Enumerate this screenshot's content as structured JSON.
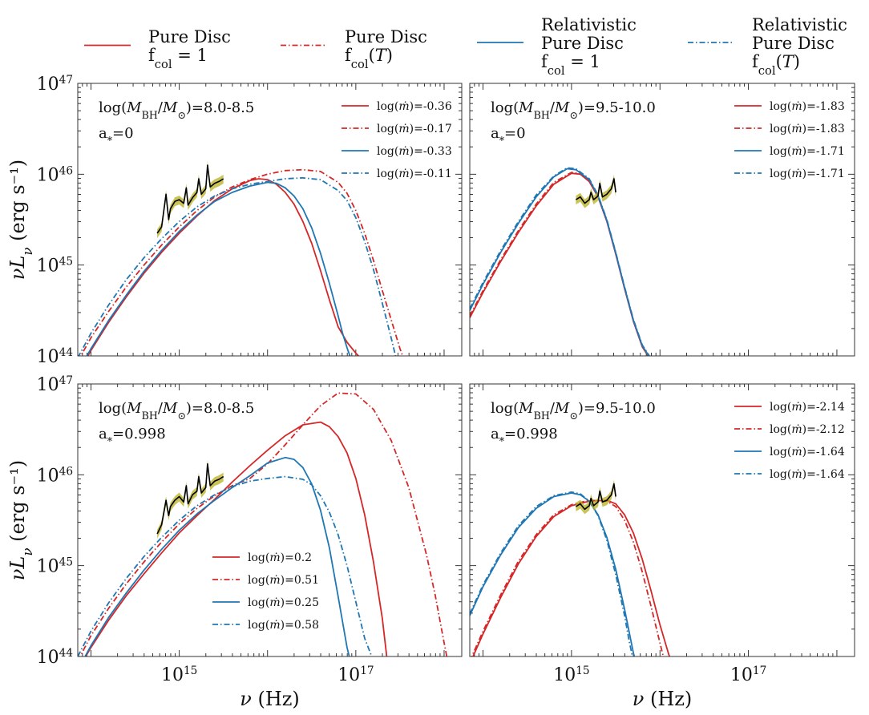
{
  "figure_legend": [
    {
      "lines": [
        "Pure Disc",
        "f_col = 1"
      ],
      "color": "#d62728",
      "dash": "solid"
    },
    {
      "lines": [
        "Pure Disc",
        "f_col(T)"
      ],
      "color": "#d62728",
      "dash": "dashdot"
    },
    {
      "lines": [
        "Relativistic",
        "Pure Disc",
        "f_col = 1"
      ],
      "color": "#1f77b4",
      "dash": "solid"
    },
    {
      "lines": [
        "Relativistic",
        "Pure Disc",
        "f_col(T)"
      ],
      "color": "#1f77b4",
      "dash": "dashdot"
    }
  ],
  "axes": {
    "xlabel": "ν (Hz)",
    "ylabel": "νLν (erg s⁻¹)",
    "x_tick_labels": [
      "10^15",
      "10^17"
    ],
    "y_tick_labels": [
      "10^44",
      "10^45",
      "10^46",
      "10^47"
    ]
  },
  "chart_data": [
    {
      "type": "line",
      "panel": "top-left",
      "annotation": [
        "log(M_BH/M_⊙)=8.0-8.5",
        "a_*=0"
      ],
      "legend_position": "top-right",
      "xlim": [
        13.85,
        18.2
      ],
      "ylim": [
        44,
        47
      ],
      "series": [
        {
          "name": "log(ṁ)=-0.36",
          "color": "#d62728",
          "dash": "solid",
          "x": [
            13.85,
            14.0,
            14.2,
            14.4,
            14.6,
            14.8,
            15.0,
            15.2,
            15.4,
            15.6,
            15.8,
            15.9,
            16.0,
            16.1,
            16.2,
            16.3,
            16.4,
            16.5,
            16.6,
            16.7,
            16.8,
            16.9,
            17.0,
            17.05
          ],
          "y": [
            43.8,
            44.06,
            44.37,
            44.65,
            44.91,
            45.14,
            45.35,
            45.54,
            45.71,
            45.84,
            45.93,
            45.95,
            45.94,
            45.89,
            45.8,
            45.67,
            45.48,
            45.24,
            44.94,
            44.62,
            44.32,
            44.15,
            44.03,
            43.98
          ]
        },
        {
          "name": "log(ṁ)=-0.17",
          "color": "#d62728",
          "dash": "dashdot",
          "x": [
            13.85,
            14.0,
            14.2,
            14.4,
            14.6,
            14.8,
            15.0,
            15.2,
            15.4,
            15.6,
            15.8,
            16.0,
            16.2,
            16.4,
            16.6,
            16.8,
            16.9,
            17.0,
            17.1,
            17.2,
            17.3,
            17.4,
            17.5,
            17.55
          ],
          "y": [
            43.94,
            44.2,
            44.49,
            44.76,
            45.0,
            45.22,
            45.42,
            45.6,
            45.75,
            45.86,
            45.94,
            46.0,
            46.04,
            46.05,
            46.03,
            45.91,
            45.79,
            45.6,
            45.35,
            45.05,
            44.72,
            44.4,
            44.08,
            43.95
          ]
        },
        {
          "name": "log(ṁ)=-0.33",
          "color": "#1f77b4",
          "dash": "solid",
          "x": [
            13.85,
            14.0,
            14.2,
            14.4,
            14.6,
            14.8,
            15.0,
            15.2,
            15.4,
            15.6,
            15.8,
            16.0,
            16.1,
            16.2,
            16.3,
            16.4,
            16.5,
            16.6,
            16.7,
            16.8,
            16.85,
            16.9,
            16.95
          ],
          "y": [
            43.82,
            44.08,
            44.39,
            44.67,
            44.93,
            45.16,
            45.37,
            45.55,
            45.7,
            45.8,
            45.87,
            45.91,
            45.9,
            45.85,
            45.76,
            45.62,
            45.41,
            45.13,
            44.8,
            44.44,
            44.25,
            44.09,
            43.95
          ]
        },
        {
          "name": "log(ṁ)=-0.11",
          "color": "#1f77b4",
          "dash": "dashdot",
          "x": [
            13.85,
            14.0,
            14.2,
            14.4,
            14.6,
            14.8,
            15.0,
            15.2,
            15.4,
            15.6,
            15.8,
            16.0,
            16.2,
            16.4,
            16.6,
            16.8,
            16.9,
            17.0,
            17.1,
            17.2,
            17.3,
            17.4,
            17.45
          ],
          "y": [
            43.98,
            44.25,
            44.56,
            44.84,
            45.08,
            45.29,
            45.48,
            45.64,
            45.76,
            45.84,
            45.89,
            45.92,
            45.95,
            45.96,
            45.94,
            45.82,
            45.71,
            45.52,
            45.26,
            44.95,
            44.58,
            44.2,
            44.0
          ]
        }
      ]
    },
    {
      "type": "line",
      "panel": "top-right",
      "annotation": [
        "log(M_BH/M_⊙)=9.5-10.0",
        "a_*=0"
      ],
      "legend_position": "top-right",
      "xlim": [
        13.85,
        18.2
      ],
      "ylim": [
        44,
        47
      ],
      "series": [
        {
          "name": "log(ṁ)=-1.83",
          "color": "#d62728",
          "dash": "solid",
          "x": [
            13.85,
            14.0,
            14.2,
            14.4,
            14.6,
            14.8,
            15.0,
            15.1,
            15.2,
            15.3,
            15.4,
            15.5,
            15.6,
            15.7,
            15.8,
            15.9
          ],
          "y": [
            44.42,
            44.7,
            45.04,
            45.36,
            45.65,
            45.89,
            46.01,
            46.0,
            45.92,
            45.75,
            45.48,
            45.12,
            44.74,
            44.38,
            44.1,
            43.95
          ]
        },
        {
          "name": "log(ṁ)=-1.83",
          "color": "#d62728",
          "dash": "dashdot",
          "x": [
            13.85,
            14.0,
            14.2,
            14.4,
            14.6,
            14.8,
            15.0,
            15.1,
            15.2,
            15.3,
            15.4,
            15.5,
            15.6,
            15.7,
            15.8,
            15.9
          ],
          "y": [
            44.44,
            44.72,
            45.06,
            45.38,
            45.67,
            45.91,
            46.02,
            46.01,
            45.93,
            45.76,
            45.49,
            45.13,
            44.75,
            44.39,
            44.11,
            43.96
          ]
        },
        {
          "name": "log(ṁ)=-1.71",
          "color": "#1f77b4",
          "dash": "solid",
          "x": [
            13.85,
            14.0,
            14.2,
            14.4,
            14.6,
            14.8,
            14.95,
            15.05,
            15.2,
            15.3,
            15.4,
            15.5,
            15.6,
            15.7,
            15.8,
            15.9
          ],
          "y": [
            44.5,
            44.79,
            45.14,
            45.46,
            45.75,
            45.97,
            46.06,
            46.05,
            45.94,
            45.76,
            45.49,
            45.13,
            44.75,
            44.39,
            44.11,
            43.96
          ]
        },
        {
          "name": "log(ṁ)=-1.71",
          "color": "#1f77b4",
          "dash": "dashdot",
          "x": [
            13.85,
            14.0,
            14.2,
            14.4,
            14.6,
            14.8,
            14.95,
            15.05,
            15.2,
            15.3,
            15.4,
            15.5,
            15.6,
            15.7,
            15.8,
            15.9
          ],
          "y": [
            44.52,
            44.81,
            45.16,
            45.48,
            45.77,
            45.98,
            46.07,
            46.06,
            45.95,
            45.77,
            45.5,
            45.14,
            44.76,
            44.4,
            44.12,
            43.97
          ]
        }
      ]
    },
    {
      "type": "line",
      "panel": "bottom-left",
      "annotation": [
        "log(M_BH/M_⊙)=8.0-8.5",
        "a_*=0.998"
      ],
      "legend_position": "bottom-center",
      "xlim": [
        13.85,
        18.2
      ],
      "ylim": [
        44,
        47
      ],
      "series": [
        {
          "name": "log(ṁ)=0.2",
          "color": "#d62728",
          "dash": "solid",
          "x": [
            13.85,
            14.0,
            14.2,
            14.4,
            14.6,
            14.8,
            15.0,
            15.2,
            15.4,
            15.6,
            15.8,
            16.0,
            16.2,
            16.4,
            16.6,
            16.7,
            16.8,
            16.9,
            17.0,
            17.1,
            17.2,
            17.3,
            17.35
          ],
          "y": [
            43.85,
            44.1,
            44.4,
            44.67,
            44.91,
            45.14,
            45.36,
            45.55,
            45.73,
            45.92,
            46.1,
            46.27,
            46.43,
            46.55,
            46.58,
            46.53,
            46.42,
            46.24,
            45.96,
            45.56,
            45.04,
            44.42,
            44.0
          ]
        },
        {
          "name": "log(ṁ)=0.51",
          "color": "#d62728",
          "dash": "dashdot",
          "x": [
            13.85,
            14.0,
            14.2,
            14.4,
            14.6,
            14.8,
            15.0,
            15.2,
            15.4,
            15.6,
            15.8,
            16.0,
            16.2,
            16.4,
            16.6,
            16.8,
            17.0,
            17.2,
            17.4,
            17.6,
            17.8,
            17.9,
            18.0,
            18.05
          ],
          "y": [
            43.95,
            44.23,
            44.53,
            44.8,
            45.04,
            45.26,
            45.46,
            45.63,
            45.77,
            45.88,
            45.96,
            46.12,
            46.33,
            46.55,
            46.76,
            46.9,
            46.89,
            46.72,
            46.38,
            45.86,
            45.12,
            44.67,
            44.15,
            43.9
          ]
        },
        {
          "name": "log(ṁ)=0.25",
          "color": "#1f77b4",
          "dash": "solid",
          "x": [
            13.85,
            14.0,
            14.2,
            14.4,
            14.6,
            14.8,
            15.0,
            15.2,
            15.4,
            15.6,
            15.8,
            16.0,
            16.2,
            16.3,
            16.4,
            16.5,
            16.6,
            16.7,
            16.8,
            16.9,
            16.95
          ],
          "y": [
            43.85,
            44.12,
            44.43,
            44.7,
            44.95,
            45.18,
            45.39,
            45.57,
            45.72,
            45.86,
            45.99,
            46.13,
            46.19,
            46.17,
            46.08,
            45.9,
            45.61,
            45.2,
            44.66,
            44.1,
            43.9
          ]
        },
        {
          "name": "log(ṁ)=0.58",
          "color": "#1f77b4",
          "dash": "dashdot",
          "x": [
            13.85,
            14.0,
            14.2,
            14.4,
            14.6,
            14.8,
            15.0,
            15.2,
            15.4,
            15.6,
            15.8,
            16.0,
            16.2,
            16.4,
            16.5,
            16.6,
            16.7,
            16.8,
            16.9,
            17.0,
            17.1,
            17.2,
            17.25
          ],
          "y": [
            44.0,
            44.28,
            44.59,
            44.86,
            45.1,
            45.31,
            45.5,
            45.66,
            45.78,
            45.87,
            45.93,
            45.96,
            45.98,
            45.95,
            45.89,
            45.77,
            45.59,
            45.34,
            45.0,
            44.6,
            44.2,
            43.95,
            43.85
          ]
        }
      ]
    },
    {
      "type": "line",
      "panel": "bottom-right",
      "annotation": [
        "log(M_BH/M_⊙)=9.5-10.0",
        "a_*=0.998"
      ],
      "legend_position": "top-right",
      "xlim": [
        13.85,
        18.2
      ],
      "ylim": [
        44,
        47
      ],
      "series": [
        {
          "name": "log(ṁ)=-2.14",
          "color": "#d62728",
          "dash": "solid",
          "x": [
            13.85,
            14.0,
            14.2,
            14.4,
            14.6,
            14.8,
            15.0,
            15.2,
            15.4,
            15.5,
            15.6,
            15.7,
            15.8,
            15.9,
            16.0,
            16.1,
            16.15
          ],
          "y": [
            43.92,
            44.25,
            44.65,
            45.02,
            45.32,
            45.54,
            45.66,
            45.71,
            45.72,
            45.68,
            45.56,
            45.36,
            45.07,
            44.72,
            44.35,
            44.02,
            43.9
          ]
        },
        {
          "name": "log(ṁ)=-2.12",
          "color": "#d62728",
          "dash": "dashdot",
          "x": [
            13.85,
            14.0,
            14.2,
            14.4,
            14.6,
            14.8,
            15.0,
            15.2,
            15.4,
            15.5,
            15.6,
            15.7,
            15.8,
            15.9,
            16.0,
            16.05
          ],
          "y": [
            43.95,
            44.28,
            44.68,
            45.05,
            45.34,
            45.56,
            45.67,
            45.72,
            45.71,
            45.65,
            45.5,
            45.26,
            44.93,
            44.55,
            44.15,
            43.95
          ]
        },
        {
          "name": "log(ṁ)=-1.64",
          "color": "#1f77b4",
          "dash": "solid",
          "x": [
            13.85,
            14.0,
            14.2,
            14.4,
            14.6,
            14.8,
            15.0,
            15.1,
            15.2,
            15.3,
            15.4,
            15.5,
            15.6,
            15.7,
            15.75
          ],
          "y": [
            44.45,
            44.77,
            45.12,
            45.42,
            45.63,
            45.76,
            45.8,
            45.78,
            45.71,
            45.56,
            45.31,
            44.96,
            44.52,
            44.04,
            43.85
          ]
        },
        {
          "name": "log(ṁ)=-1.64",
          "color": "#1f77b4",
          "dash": "dashdot",
          "x": [
            13.85,
            14.0,
            14.2,
            14.4,
            14.6,
            14.8,
            15.0,
            15.1,
            15.2,
            15.3,
            15.4,
            15.5,
            15.6,
            15.65,
            15.7
          ],
          "y": [
            44.47,
            44.79,
            45.14,
            45.44,
            45.65,
            45.77,
            45.81,
            45.79,
            45.71,
            45.55,
            45.28,
            44.9,
            44.45,
            44.18,
            43.95
          ]
        }
      ]
    }
  ],
  "observed_spectrum": [
    {
      "panel": "top-left",
      "color": "#000000",
      "band_color": "#b8b020",
      "x": [
        14.75,
        14.8,
        14.85,
        14.88,
        14.9,
        14.95,
        15.0,
        15.05,
        15.08,
        15.1,
        15.15,
        15.2,
        15.22,
        15.25,
        15.3,
        15.32,
        15.35,
        15.4,
        15.45,
        15.5
      ],
      "y": [
        45.35,
        45.42,
        45.78,
        45.5,
        45.62,
        45.7,
        45.72,
        45.68,
        45.85,
        45.66,
        45.74,
        45.8,
        45.95,
        45.78,
        45.84,
        46.1,
        45.86,
        45.9,
        45.92,
        45.95
      ]
    },
    {
      "panel": "top-right",
      "color": "#000000",
      "band_color": "#b8b020",
      "x": [
        15.05,
        15.1,
        15.15,
        15.2,
        15.22,
        15.25,
        15.3,
        15.32,
        15.35,
        15.4,
        15.45,
        15.48,
        15.5
      ],
      "y": [
        45.72,
        45.75,
        45.68,
        45.72,
        45.8,
        45.72,
        45.76,
        45.9,
        45.75,
        45.78,
        45.84,
        45.95,
        45.8
      ]
    },
    {
      "panel": "bottom-left",
      "color": "#000000",
      "band_color": "#b8b020",
      "x": [
        14.75,
        14.8,
        14.85,
        14.88,
        14.9,
        14.95,
        15.0,
        15.05,
        15.08,
        15.1,
        15.15,
        15.2,
        15.22,
        15.25,
        15.3,
        15.32,
        15.35,
        15.4,
        15.45,
        15.5
      ],
      "y": [
        45.35,
        45.45,
        45.72,
        45.55,
        45.65,
        45.72,
        45.76,
        45.7,
        45.88,
        45.68,
        45.78,
        45.82,
        45.98,
        45.8,
        45.86,
        46.12,
        45.88,
        45.93,
        45.95,
        45.98
      ]
    },
    {
      "panel": "bottom-right",
      "color": "#000000",
      "band_color": "#b8b020",
      "x": [
        15.05,
        15.1,
        15.15,
        15.2,
        15.22,
        15.25,
        15.3,
        15.32,
        15.35,
        15.4,
        15.45,
        15.48,
        15.5
      ],
      "y": [
        45.65,
        45.68,
        45.62,
        45.66,
        45.74,
        45.66,
        45.7,
        45.82,
        45.7,
        45.72,
        45.78,
        45.9,
        45.76
      ]
    }
  ]
}
